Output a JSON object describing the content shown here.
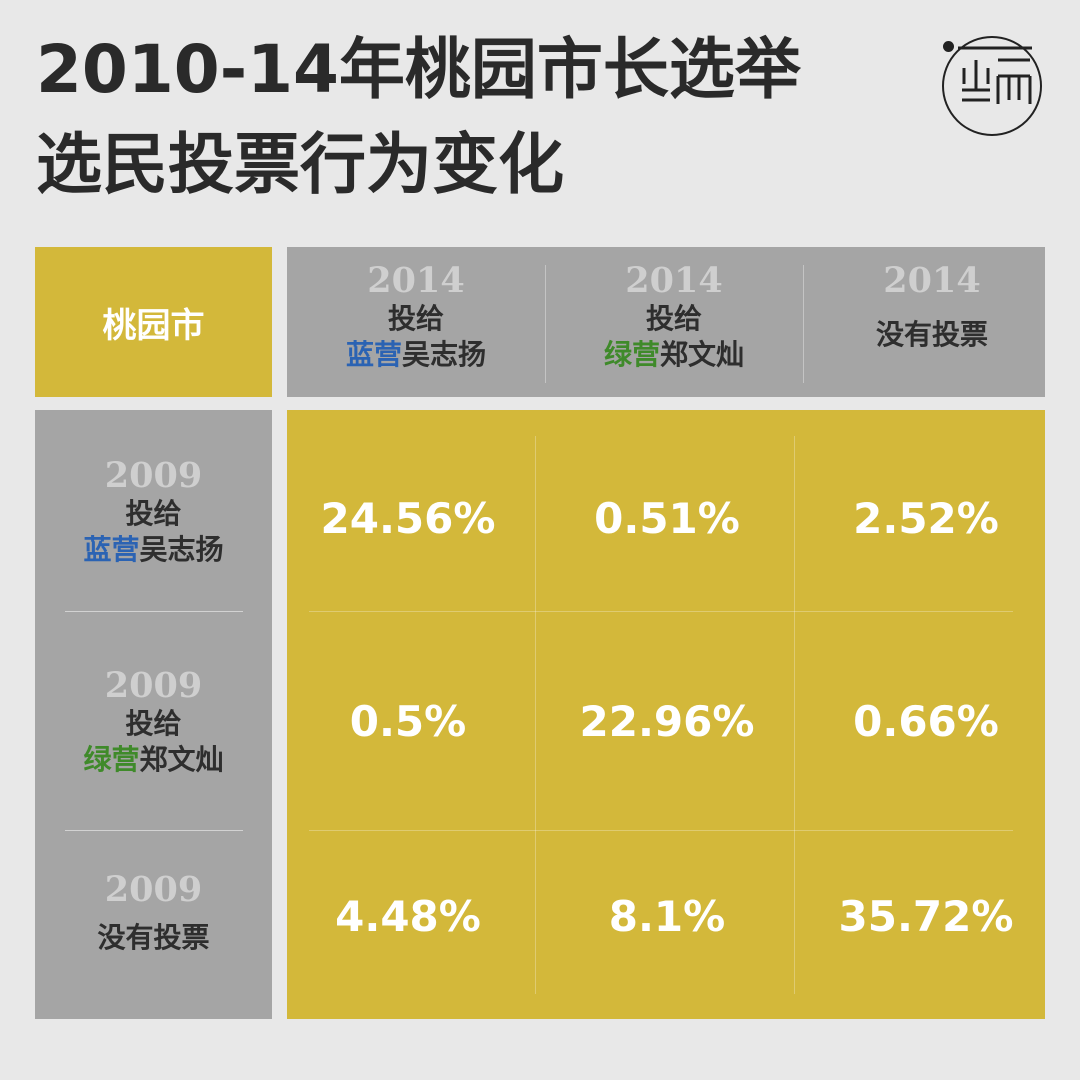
{
  "title": {
    "line1": "2010-14年桃园市长选举",
    "line2": "选民投票行为变化"
  },
  "logo": {
    "text": "端"
  },
  "colors": {
    "gold": "#d3b83a",
    "grey": "#a5a5a5",
    "background": "#e8e8e8",
    "blue_camp": "#2b63b3",
    "green_camp": "#3f8a2a"
  },
  "chart_data": {
    "type": "table",
    "corner_label": "桃园市",
    "columns": [
      {
        "year": "2014",
        "line1": "投给",
        "camp": "蓝营",
        "camp_color": "blue",
        "candidate": "吴志扬"
      },
      {
        "year": "2014",
        "line1": "投给",
        "camp": "绿营",
        "camp_color": "green",
        "candidate": "郑文灿"
      },
      {
        "year": "2014",
        "line1": "没有投票",
        "camp": "",
        "camp_color": "",
        "candidate": ""
      }
    ],
    "rows": [
      {
        "year": "2009",
        "line1": "投给",
        "camp": "蓝营",
        "camp_color": "blue",
        "candidate": "吴志扬"
      },
      {
        "year": "2009",
        "line1": "投给",
        "camp": "绿营",
        "camp_color": "green",
        "candidate": "郑文灿"
      },
      {
        "year": "2009",
        "line1": "没有投票",
        "camp": "",
        "camp_color": "",
        "candidate": ""
      }
    ],
    "values": [
      [
        "24.56%",
        "0.51%",
        "2.52%"
      ],
      [
        "0.5%",
        "22.96%",
        "0.66%"
      ],
      [
        "4.48%",
        "8.1%",
        "35.72%"
      ]
    ],
    "values_numeric": [
      [
        24.56,
        0.51,
        2.52
      ],
      [
        0.5,
        22.96,
        0.66
      ],
      [
        4.48,
        8.1,
        35.72
      ]
    ]
  }
}
